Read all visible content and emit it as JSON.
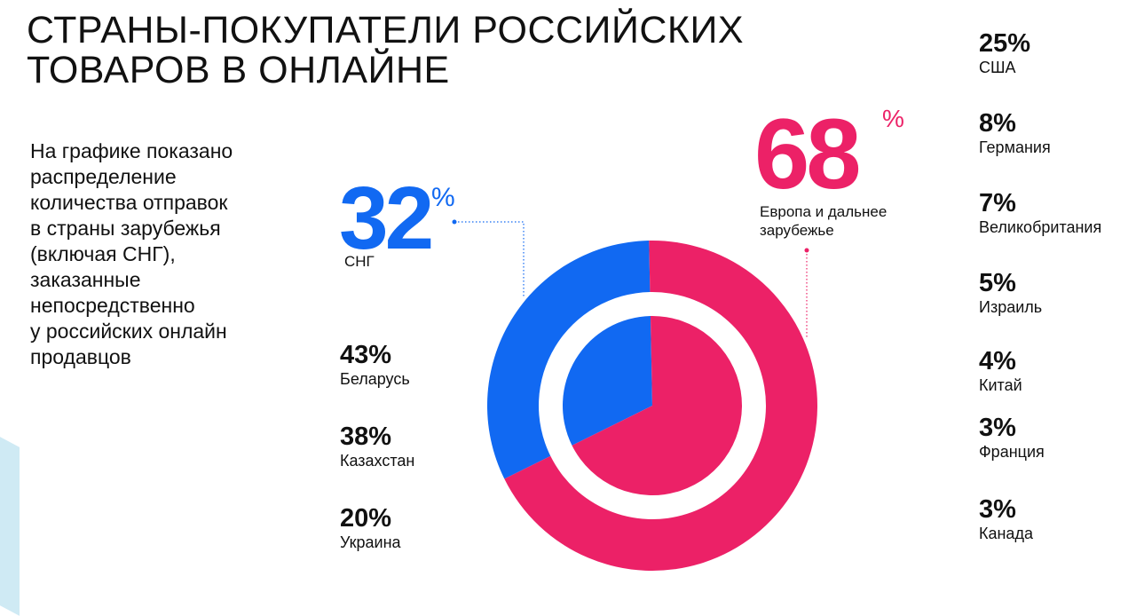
{
  "title": {
    "line1": "СТРАНЫ-ПОКУПАТЕЛИ РОССИЙСКИХ",
    "line2": "ТОВАРОВ В ОНЛАЙНЕ"
  },
  "description": [
    "На графике показано",
    "распределение",
    "количества отправок",
    "в страны зарубежья",
    "(включая СНГ),",
    "заказанные",
    "непосредственно",
    "у российских онлайн",
    "продавцов"
  ],
  "colors": {
    "cis": "#1169f2",
    "far_abroad": "#ec2167",
    "text": "#111111",
    "accent_stripe": "#cfeaf4"
  },
  "chart_data": {
    "type": "pie",
    "subtype": "nested-donut",
    "series": [
      {
        "ring": "outer",
        "values": [
          {
            "label": "СНГ",
            "display": "32",
            "unit": "%",
            "value": 32,
            "color": "#1169f2"
          },
          {
            "label": "Европа и дальнее зарубежье",
            "display": "68",
            "unit": "%",
            "value": 68,
            "color": "#ec2167"
          }
        ]
      },
      {
        "ring": "inner",
        "values": [
          {
            "label": "СНГ",
            "value": 32,
            "color": "#1169f2"
          },
          {
            "label": "Европа и дальнее зарубежье",
            "value": 68,
            "color": "#ec2167"
          }
        ]
      }
    ],
    "cis_countries": [
      {
        "pct": "43%",
        "name": "Беларусь",
        "value": 43
      },
      {
        "pct": "38%",
        "name": "Казахстан",
        "value": 38
      },
      {
        "pct": "20%",
        "name": "Украина",
        "value": 20
      }
    ],
    "far_countries": [
      {
        "pct": "25%",
        "name": "США",
        "value": 25
      },
      {
        "pct": "8%",
        "name": "Германия",
        "value": 8
      },
      {
        "pct": "7%",
        "name": "Великобритания",
        "value": 7
      },
      {
        "pct": "5%",
        "name": "Израиль",
        "value": 5
      },
      {
        "pct": "4%",
        "name": "Китай",
        "value": 4
      },
      {
        "pct": "3%",
        "name": "Франция",
        "value": 3
      },
      {
        "pct": "3%",
        "name": "Канада",
        "value": 3
      }
    ]
  }
}
